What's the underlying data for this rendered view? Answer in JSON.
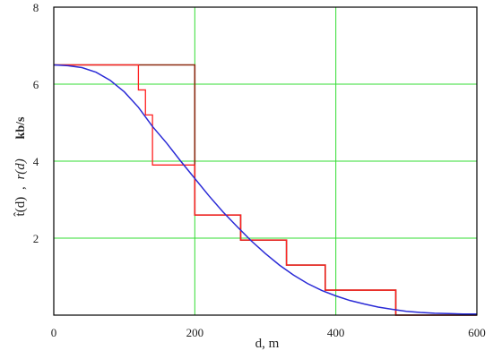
{
  "chart_data": {
    "type": "line",
    "xlabel": "d, m",
    "ylabel": {
      "left_fn": "t̂(d)",
      "sep": ",",
      "right_fn": "r(d)",
      "unit": "kb/s"
    },
    "xlim": [
      0,
      600
    ],
    "ylim": [
      0,
      8
    ],
    "x_ticks": [
      0,
      200,
      400,
      600
    ],
    "y_ticks": [
      2,
      4,
      6,
      8
    ],
    "grid": true,
    "colors": {
      "grid": "#33dd33",
      "frame": "#000000",
      "step_dark": "#8b2a10",
      "step_red": "#ff2020",
      "smooth": "#2a2ad6"
    },
    "series": [
      {
        "style": "step-dark",
        "x": [
          0,
          200,
          200,
          265,
          265,
          330,
          330,
          385,
          385,
          485,
          485,
          600
        ],
        "y": [
          6.5,
          6.5,
          2.6,
          2.6,
          1.95,
          1.95,
          1.3,
          1.3,
          0.65,
          0.65,
          0,
          0
        ]
      },
      {
        "style": "step-red",
        "x": [
          0,
          120,
          120,
          130,
          130,
          140,
          140,
          190,
          190,
          200,
          200,
          265,
          265,
          330,
          330,
          385,
          385,
          485,
          485,
          600
        ],
        "y": [
          6.5,
          6.5,
          5.85,
          5.85,
          5.2,
          5.2,
          3.9,
          3.9,
          3.9,
          3.9,
          2.6,
          2.6,
          1.95,
          1.95,
          1.3,
          1.3,
          0.65,
          0.65,
          0,
          0
        ]
      },
      {
        "style": "smooth",
        "x": [
          0,
          20,
          40,
          60,
          80,
          100,
          120,
          140,
          160,
          180,
          200,
          220,
          240,
          260,
          280,
          300,
          320,
          340,
          360,
          380,
          400,
          420,
          440,
          460,
          480,
          500,
          520,
          540,
          560,
          580,
          600
        ],
        "y": [
          6.5,
          6.48,
          6.43,
          6.31,
          6.1,
          5.8,
          5.4,
          4.9,
          4.47,
          4.0,
          3.55,
          3.1,
          2.68,
          2.3,
          1.93,
          1.6,
          1.3,
          1.04,
          0.82,
          0.64,
          0.5,
          0.38,
          0.29,
          0.21,
          0.15,
          0.1,
          0.07,
          0.05,
          0.04,
          0.03,
          0.03
        ]
      }
    ]
  }
}
